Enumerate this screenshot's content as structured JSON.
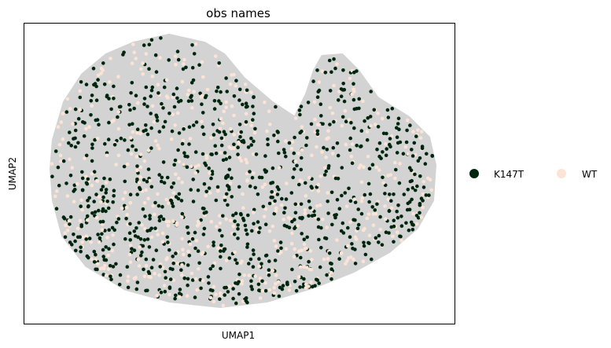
{
  "chart_data": {
    "type": "scatter",
    "title": "obs names",
    "xlabel": "UMAP1",
    "ylabel": "UMAP2",
    "grid": false,
    "legend_position": "right",
    "background_points_color": "#d3d3d3",
    "x_ticks_shown": false,
    "y_ticks_shown": false,
    "series": [
      {
        "name": "K147T",
        "color": "#00260f"
      },
      {
        "name": "WT",
        "color": "#fbe4d6"
      }
    ]
  }
}
